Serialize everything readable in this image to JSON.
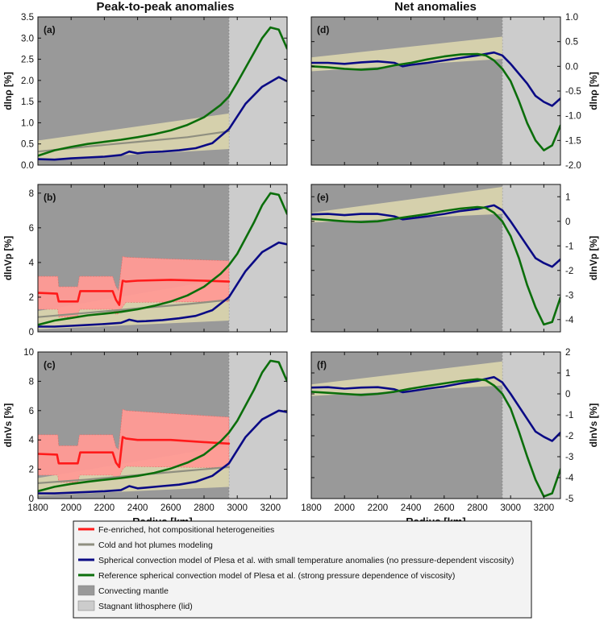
{
  "figure": {
    "left_title": "Peak-to-peak anomalies",
    "right_title": "Net anomalies"
  },
  "colors": {
    "convecting": "#999999",
    "lid": "#cccccc",
    "beige": "#dcd6ae",
    "red_band": "#ff9a95",
    "red": "#ff1a1a",
    "gray_line": "#8f8f80",
    "blue": "#0a0a85",
    "green": "#0b6e0b"
  },
  "legend": {
    "items": [
      {
        "label": "Fe-enriched, hot compositional heterogeneities",
        "color": "#ff1a1a",
        "kind": "line"
      },
      {
        "label": "Cold and hot plumes modeling",
        "color": "#8f8f80",
        "kind": "line"
      },
      {
        "label": "Spherical convection model of Plesa et al. with small temperature anomalies (no pressure-dependent viscosity)",
        "color": "#0a0a85",
        "kind": "line"
      },
      {
        "label": "Reference spherical convection model of Plesa et al. (strong pressure dependence of viscosity)",
        "color": "#0b6e0b",
        "kind": "line"
      },
      {
        "label": "Convecting mantle",
        "color": "#999999",
        "kind": "box"
      },
      {
        "label": "Stagnant lithosphere (lid)",
        "color": "#cccccc",
        "kind": "box"
      }
    ]
  },
  "chart_data": [
    {
      "type": "line",
      "panel": "(a)",
      "ylabel": "dlnρ [%]",
      "xlabel": "",
      "xlim": [
        1800,
        3300
      ],
      "ylim": [
        0,
        3.5
      ],
      "lid_start": 2950,
      "yticks": [
        "0.0",
        "0.5",
        "1.0",
        "1.5",
        "2.0",
        "2.5",
        "3.0",
        "3.5"
      ],
      "ytick_values": [
        0,
        0.5,
        1,
        1.5,
        2,
        2.5,
        3,
        3.5
      ],
      "xticks": [],
      "bands": [
        {
          "name": "beige",
          "x": [
            1800,
            2950
          ],
          "lower": [
            0.12,
            0.38
          ],
          "upper": [
            0.58,
            1.22
          ]
        }
      ],
      "series": [
        {
          "key": "gray",
          "x": [
            1800,
            2100,
            2400,
            2700,
            2950
          ],
          "y": [
            0.32,
            0.44,
            0.55,
            0.66,
            0.8
          ]
        },
        {
          "key": "blue",
          "x": [
            1800,
            1900,
            2000,
            2100,
            2200,
            2300,
            2350,
            2400,
            2450,
            2550,
            2650,
            2750,
            2850,
            2950,
            3050,
            3150,
            3250,
            3300
          ],
          "y": [
            0.14,
            0.13,
            0.16,
            0.18,
            0.2,
            0.24,
            0.32,
            0.28,
            0.3,
            0.32,
            0.35,
            0.4,
            0.52,
            0.85,
            1.45,
            1.85,
            2.08,
            1.98
          ]
        },
        {
          "key": "green",
          "x": [
            1800,
            1900,
            2000,
            2100,
            2200,
            2300,
            2400,
            2500,
            2600,
            2700,
            2800,
            2900,
            2950,
            3000,
            3100,
            3150,
            3200,
            3250,
            3300
          ],
          "y": [
            0.22,
            0.35,
            0.43,
            0.5,
            0.55,
            0.6,
            0.66,
            0.73,
            0.82,
            0.95,
            1.13,
            1.42,
            1.62,
            1.95,
            2.65,
            3.0,
            3.25,
            3.2,
            2.75
          ]
        }
      ]
    },
    {
      "type": "line",
      "panel": "(b)",
      "ylabel": "dlnVp [%]",
      "xlabel": "",
      "xlim": [
        1800,
        3300
      ],
      "ylim": [
        0,
        8.5
      ],
      "lid_start": 2950,
      "yticks": [
        "0",
        "2",
        "4",
        "6",
        "8"
      ],
      "ytick_values": [
        0,
        2,
        4,
        6,
        8
      ],
      "xticks": [],
      "bands": [
        {
          "name": "beige",
          "x": [
            1800,
            2950
          ],
          "lower": [
            0.15,
            0.65
          ],
          "upper": [
            1.2,
            3.1
          ]
        },
        {
          "name": "red",
          "x": [
            1800,
            1920,
            1925,
            2040,
            2050,
            2250,
            2270,
            2285,
            2310,
            2330,
            2600,
            2950
          ],
          "lower": [
            1.3,
            1.3,
            0.85,
            0.85,
            1.3,
            1.3,
            1.0,
            1.05,
            1.45,
            1.7,
            1.72,
            1.75
          ],
          "upper": [
            3.2,
            3.2,
            2.6,
            2.6,
            3.2,
            3.2,
            2.6,
            2.4,
            4.35,
            4.3,
            4.2,
            4.1
          ]
        }
      ],
      "series": [
        {
          "key": "red",
          "x": [
            1800,
            1915,
            1925,
            2040,
            2055,
            2250,
            2270,
            2290,
            2310,
            2330,
            2400,
            2600,
            2800,
            2950
          ],
          "y": [
            2.25,
            2.2,
            1.75,
            1.75,
            2.35,
            2.35,
            1.85,
            1.55,
            2.95,
            2.9,
            2.95,
            3.0,
            2.95,
            2.9
          ]
        },
        {
          "key": "gray",
          "x": [
            1800,
            2100,
            2400,
            2700,
            2950
          ],
          "y": [
            0.85,
            1.1,
            1.35,
            1.6,
            1.85
          ]
        },
        {
          "key": "blue",
          "x": [
            1800,
            1900,
            2000,
            2100,
            2200,
            2300,
            2350,
            2400,
            2450,
            2550,
            2650,
            2750,
            2850,
            2950,
            3050,
            3150,
            3250,
            3300
          ],
          "y": [
            0.3,
            0.3,
            0.35,
            0.4,
            0.45,
            0.52,
            0.7,
            0.6,
            0.62,
            0.68,
            0.78,
            0.92,
            1.25,
            2.0,
            3.5,
            4.6,
            5.15,
            5.05
          ]
        },
        {
          "key": "green",
          "x": [
            1800,
            1900,
            2000,
            2100,
            2200,
            2300,
            2400,
            2500,
            2600,
            2700,
            2800,
            2900,
            2950,
            3000,
            3100,
            3150,
            3200,
            3250,
            3300
          ],
          "y": [
            0.4,
            0.65,
            0.8,
            0.95,
            1.05,
            1.15,
            1.3,
            1.5,
            1.75,
            2.1,
            2.6,
            3.35,
            3.85,
            4.5,
            6.3,
            7.3,
            8.0,
            7.9,
            6.8
          ]
        }
      ]
    },
    {
      "type": "line",
      "panel": "(c)",
      "ylabel": "dlnVs [%]",
      "xlabel": "Radius [km]",
      "xlim": [
        1800,
        3300
      ],
      "ylim": [
        0,
        10
      ],
      "lid_start": 2950,
      "yticks": [
        "0",
        "2",
        "4",
        "6",
        "8",
        "10"
      ],
      "ytick_values": [
        0,
        2,
        4,
        6,
        8,
        10
      ],
      "xticks": [
        "1800",
        "2000",
        "2200",
        "2400",
        "2600",
        "2800",
        "3000",
        "3200"
      ],
      "xtick_values": [
        1800,
        2000,
        2200,
        2400,
        2600,
        2800,
        3000,
        3200
      ],
      "bands": [
        {
          "name": "beige",
          "x": [
            1800,
            2950
          ],
          "lower": [
            0.2,
            0.8
          ],
          "upper": [
            1.4,
            3.6
          ]
        },
        {
          "name": "red",
          "x": [
            1800,
            1920,
            1925,
            2040,
            2050,
            2250,
            2270,
            2285,
            2310,
            2330,
            2600,
            2950
          ],
          "lower": [
            1.6,
            1.6,
            1.1,
            1.1,
            1.6,
            1.6,
            1.3,
            1.35,
            2.0,
            2.2,
            2.15,
            2.1
          ],
          "upper": [
            4.35,
            4.35,
            3.6,
            3.6,
            4.35,
            4.35,
            3.5,
            3.35,
            6.1,
            6.0,
            5.8,
            5.55
          ]
        }
      ],
      "series": [
        {
          "key": "red",
          "x": [
            1800,
            1915,
            1925,
            2040,
            2055,
            2250,
            2270,
            2290,
            2310,
            2330,
            2400,
            2600,
            2800,
            2950
          ],
          "y": [
            3.05,
            3.0,
            2.4,
            2.4,
            3.15,
            3.15,
            2.45,
            2.15,
            4.2,
            4.1,
            4.0,
            4.0,
            3.85,
            3.75
          ]
        },
        {
          "key": "gray",
          "x": [
            1800,
            2100,
            2400,
            2700,
            2950
          ],
          "y": [
            1.05,
            1.3,
            1.6,
            1.9,
            2.15
          ]
        },
        {
          "key": "blue",
          "x": [
            1800,
            1900,
            2000,
            2100,
            2200,
            2300,
            2350,
            2400,
            2450,
            2550,
            2650,
            2750,
            2850,
            2950,
            3050,
            3150,
            3250,
            3300
          ],
          "y": [
            0.35,
            0.35,
            0.4,
            0.45,
            0.5,
            0.58,
            0.85,
            0.7,
            0.75,
            0.85,
            0.95,
            1.15,
            1.55,
            2.4,
            4.2,
            5.4,
            6.0,
            5.9
          ]
        },
        {
          "key": "green",
          "x": [
            1800,
            1900,
            2000,
            2100,
            2200,
            2300,
            2400,
            2500,
            2600,
            2700,
            2800,
            2900,
            2950,
            3000,
            3100,
            3150,
            3200,
            3250,
            3300
          ],
          "y": [
            0.5,
            0.8,
            1.0,
            1.15,
            1.28,
            1.4,
            1.55,
            1.75,
            2.05,
            2.45,
            3.0,
            3.9,
            4.5,
            5.3,
            7.4,
            8.6,
            9.4,
            9.3,
            8.0
          ]
        }
      ]
    },
    {
      "type": "line",
      "panel": "(d)",
      "ylabel": "dlnρ [%]",
      "xlabel": "",
      "xlim": [
        1800,
        3300
      ],
      "ylim": [
        -2.0,
        1.0
      ],
      "lid_start": 2950,
      "yticks": [
        "-2.0",
        "-1.5",
        "-1.0",
        "-0.5",
        "0.0",
        "0.5",
        "1.0"
      ],
      "ytick_values": [
        -2.0,
        -1.5,
        -1.0,
        -0.5,
        0.0,
        0.5,
        1.0
      ],
      "xticks": [],
      "bands": [
        {
          "name": "beige",
          "x": [
            1800,
            2950
          ],
          "lower": [
            -0.1,
            0.15
          ],
          "upper": [
            0.18,
            0.6
          ]
        }
      ],
      "series": [
        {
          "key": "blue",
          "x": [
            1800,
            1900,
            2000,
            2100,
            2200,
            2300,
            2350,
            2400,
            2500,
            2600,
            2700,
            2800,
            2900,
            2950,
            3000,
            3100,
            3150,
            3200,
            3250,
            3300
          ],
          "y": [
            0.07,
            0.07,
            0.05,
            0.08,
            0.1,
            0.07,
            0.0,
            0.03,
            0.07,
            0.12,
            0.17,
            0.22,
            0.28,
            0.22,
            0.05,
            -0.35,
            -0.6,
            -0.72,
            -0.8,
            -0.65
          ]
        },
        {
          "key": "green",
          "x": [
            1800,
            1900,
            2000,
            2100,
            2200,
            2300,
            2400,
            2500,
            2600,
            2700,
            2800,
            2850,
            2900,
            2950,
            3000,
            3050,
            3100,
            3150,
            3200,
            3250,
            3300
          ],
          "y": [
            0.0,
            -0.02,
            -0.05,
            -0.07,
            -0.05,
            0.02,
            0.07,
            0.14,
            0.2,
            0.24,
            0.25,
            0.22,
            0.12,
            -0.05,
            -0.3,
            -0.7,
            -1.15,
            -1.5,
            -1.7,
            -1.6,
            -1.2
          ]
        }
      ]
    },
    {
      "type": "line",
      "panel": "(e)",
      "ylabel": "dlnVp [%]",
      "xlabel": "",
      "xlim": [
        1800,
        3300
      ],
      "ylim": [
        -4.5,
        1.5
      ],
      "lid_start": 2950,
      "yticks": [
        "-4",
        "-3",
        "-2",
        "-1",
        "0",
        "1"
      ],
      "ytick_values": [
        -4,
        -3,
        -2,
        -1,
        0,
        1
      ],
      "xticks": [],
      "bands": [
        {
          "name": "beige",
          "x": [
            1800,
            2950
          ],
          "lower": [
            -0.05,
            0.3
          ],
          "upper": [
            0.35,
            1.4
          ]
        }
      ],
      "series": [
        {
          "key": "blue",
          "x": [
            1800,
            1900,
            2000,
            2100,
            2200,
            2300,
            2350,
            2400,
            2500,
            2600,
            2700,
            2800,
            2900,
            2950,
            3000,
            3100,
            3150,
            3200,
            3250,
            3300
          ],
          "y": [
            0.28,
            0.3,
            0.25,
            0.3,
            0.3,
            0.2,
            0.08,
            0.12,
            0.2,
            0.3,
            0.42,
            0.5,
            0.65,
            0.45,
            0.0,
            -1.0,
            -1.5,
            -1.7,
            -1.85,
            -1.55
          ]
        },
        {
          "key": "green",
          "x": [
            1800,
            1900,
            2000,
            2100,
            2200,
            2300,
            2400,
            2500,
            2600,
            2700,
            2800,
            2850,
            2900,
            2950,
            3000,
            3050,
            3100,
            3150,
            3200,
            3250,
            3300
          ],
          "y": [
            0.1,
            0.05,
            0.0,
            -0.03,
            0.0,
            0.1,
            0.2,
            0.3,
            0.42,
            0.52,
            0.58,
            0.55,
            0.35,
            0.0,
            -0.6,
            -1.5,
            -2.6,
            -3.5,
            -4.2,
            -4.1,
            -3.1
          ]
        }
      ]
    },
    {
      "type": "line",
      "panel": "(f)",
      "ylabel": "dlnVs [%]",
      "xlabel": "Radius [km]",
      "xlim": [
        1800,
        3300
      ],
      "ylim": [
        -5,
        2
      ],
      "lid_start": 2950,
      "yticks": [
        "-5",
        "-4",
        "-3",
        "-2",
        "-1",
        "0",
        "1",
        "2"
      ],
      "ytick_values": [
        -5,
        -4,
        -3,
        -2,
        -1,
        0,
        1,
        2
      ],
      "xticks": [
        "1800",
        "2000",
        "2200",
        "2400",
        "2600",
        "2800",
        "3000",
        "3200"
      ],
      "xtick_values": [
        1800,
        2000,
        2200,
        2400,
        2600,
        2800,
        3000,
        3200
      ],
      "bands": [
        {
          "name": "beige",
          "x": [
            1800,
            2950
          ],
          "lower": [
            -0.1,
            0.4
          ],
          "upper": [
            0.45,
            1.55
          ]
        }
      ],
      "series": [
        {
          "key": "blue",
          "x": [
            1800,
            1900,
            2000,
            2100,
            2200,
            2300,
            2350,
            2400,
            2500,
            2600,
            2700,
            2800,
            2900,
            2950,
            3000,
            3100,
            3150,
            3200,
            3250,
            3300
          ],
          "y": [
            0.3,
            0.32,
            0.25,
            0.3,
            0.32,
            0.22,
            0.08,
            0.13,
            0.25,
            0.35,
            0.5,
            0.62,
            0.8,
            0.55,
            0.0,
            -1.2,
            -1.8,
            -2.05,
            -2.25,
            -1.85
          ]
        },
        {
          "key": "green",
          "x": [
            1800,
            1900,
            2000,
            2100,
            2200,
            2300,
            2400,
            2500,
            2600,
            2700,
            2800,
            2850,
            2900,
            2950,
            3000,
            3050,
            3100,
            3150,
            3200,
            3250,
            3300
          ],
          "y": [
            0.1,
            0.05,
            0.0,
            -0.05,
            0.0,
            0.1,
            0.25,
            0.38,
            0.5,
            0.62,
            0.7,
            0.65,
            0.4,
            0.0,
            -0.7,
            -1.8,
            -3.0,
            -4.1,
            -4.9,
            -4.75,
            -3.6
          ]
        }
      ]
    }
  ]
}
